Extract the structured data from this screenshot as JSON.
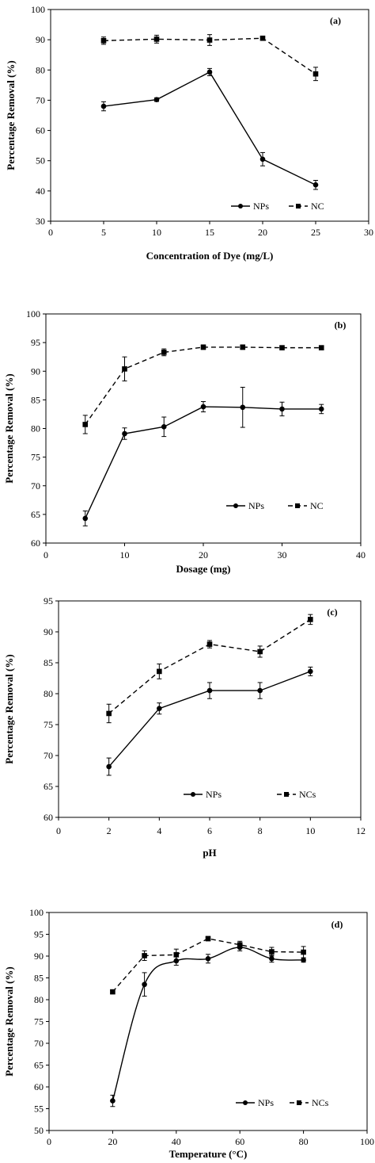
{
  "chart_data": [
    {
      "type": "line",
      "title": "",
      "panel_label": "(a)",
      "xlabel": "Concentration  of Dye (mg/L)",
      "ylabel": "Percentage Removal (%)",
      "xlim": [
        0,
        30
      ],
      "ylim": [
        30,
        100
      ],
      "xticks": [
        0,
        5,
        10,
        15,
        20,
        25,
        30
      ],
      "yticks": [
        30,
        40,
        50,
        60,
        70,
        80,
        90,
        100
      ],
      "legend_placement": "bottom-right",
      "grid": false,
      "series": [
        {
          "name": "NPs",
          "style": "solid",
          "marker": "circle",
          "x": [
            5,
            10,
            15,
            20,
            25
          ],
          "y": [
            68,
            70.2,
            79.3,
            50.5,
            42
          ],
          "err": [
            1.5,
            0.6,
            1.2,
            2.2,
            1.5
          ]
        },
        {
          "name": "NC",
          "style": "dashed",
          "marker": "square",
          "x": [
            5,
            10,
            15,
            20,
            25
          ],
          "y": [
            89.7,
            90.2,
            89.9,
            90.5,
            78.7
          ],
          "err": [
            1.2,
            1.3,
            1.8,
            0.5,
            2.2
          ]
        }
      ]
    },
    {
      "type": "line",
      "title": "",
      "panel_label": "(b)",
      "xlabel": "Dosage (mg)",
      "ylabel": "Percentage Removal (%)",
      "xlim": [
        0,
        40
      ],
      "ylim": [
        60,
        100
      ],
      "xticks": [
        0,
        10,
        20,
        30,
        40
      ],
      "yticks": [
        60,
        65,
        70,
        75,
        80,
        85,
        90,
        95,
        100
      ],
      "legend_placement": "bottom-right",
      "grid": false,
      "series": [
        {
          "name": "NPs",
          "style": "solid",
          "marker": "circle",
          "x": [
            5,
            10,
            15,
            20,
            25,
            30,
            35
          ],
          "y": [
            64.3,
            79.1,
            80.3,
            83.8,
            83.7,
            83.4,
            83.4
          ],
          "err": [
            1.3,
            1.0,
            1.7,
            0.9,
            3.5,
            1.2,
            0.8
          ]
        },
        {
          "name": "NC",
          "style": "dashed",
          "marker": "square",
          "x": [
            5,
            10,
            15,
            20,
            25,
            30,
            35
          ],
          "y": [
            80.7,
            90.4,
            93.3,
            94.2,
            94.2,
            94.1,
            94.1
          ],
          "err": [
            1.6,
            2.1,
            0.6,
            0.4,
            0.4,
            0.3,
            0.3
          ]
        }
      ]
    },
    {
      "type": "line",
      "title": "",
      "panel_label": "(c)",
      "xlabel": "pH",
      "ylabel": "Percentage Removal (%)",
      "xlim": [
        0,
        12
      ],
      "ylim": [
        60,
        95
      ],
      "xticks": [
        0,
        2,
        4,
        6,
        8,
        10,
        12
      ],
      "yticks": [
        60,
        65,
        70,
        75,
        80,
        85,
        90,
        95
      ],
      "legend_placement": "bottom-right",
      "grid": false,
      "series": [
        {
          "name": "NPs",
          "style": "solid",
          "marker": "circle",
          "x": [
            2,
            4,
            6,
            8,
            10
          ],
          "y": [
            68.2,
            77.6,
            80.5,
            80.5,
            83.6
          ],
          "err": [
            1.4,
            0.9,
            1.3,
            1.3,
            0.7
          ]
        },
        {
          "name": "NCs",
          "style": "dashed",
          "marker": "square",
          "x": [
            2,
            4,
            6,
            8,
            10
          ],
          "y": [
            76.8,
            83.6,
            88.0,
            86.8,
            92.0
          ],
          "err": [
            1.5,
            1.2,
            0.6,
            0.9,
            0.8
          ]
        }
      ]
    },
    {
      "type": "line",
      "title": "",
      "panel_label": "(d)",
      "xlabel": "Temperature  (°C)",
      "ylabel": "Percentage Removal (%)",
      "xlim": [
        0,
        100
      ],
      "ylim": [
        50,
        100
      ],
      "xticks": [
        0,
        20,
        40,
        60,
        80,
        100
      ],
      "xtick_labels": [
        "0",
        "20",
        "40",
        "60",
        "80",
        "100"
      ],
      "yticks": [
        50,
        55,
        60,
        65,
        70,
        75,
        80,
        85,
        90,
        95,
        100
      ],
      "legend_placement": "bottom-right",
      "grid": false,
      "series": [
        {
          "name": "NPs",
          "style": "solid",
          "marker": "circle",
          "smooth": true,
          "x": [
            20,
            30,
            40,
            50,
            60,
            70,
            80
          ],
          "y": [
            56.8,
            83.5,
            88.9,
            89.4,
            92.0,
            89.4,
            89.1
          ],
          "err": [
            1.3,
            2.7,
            1.0,
            1.0,
            0.8,
            0.8,
            0.5
          ]
        },
        {
          "name": "NCs",
          "style": "dashed",
          "marker": "square",
          "x": [
            20,
            30,
            40,
            50,
            60,
            70,
            80
          ],
          "y": [
            81.8,
            90.1,
            90.3,
            94.0,
            92.6,
            91.0,
            90.9
          ],
          "err": [
            0.3,
            1.1,
            1.3,
            0.5,
            0.8,
            1.0,
            1.3
          ]
        }
      ]
    }
  ]
}
